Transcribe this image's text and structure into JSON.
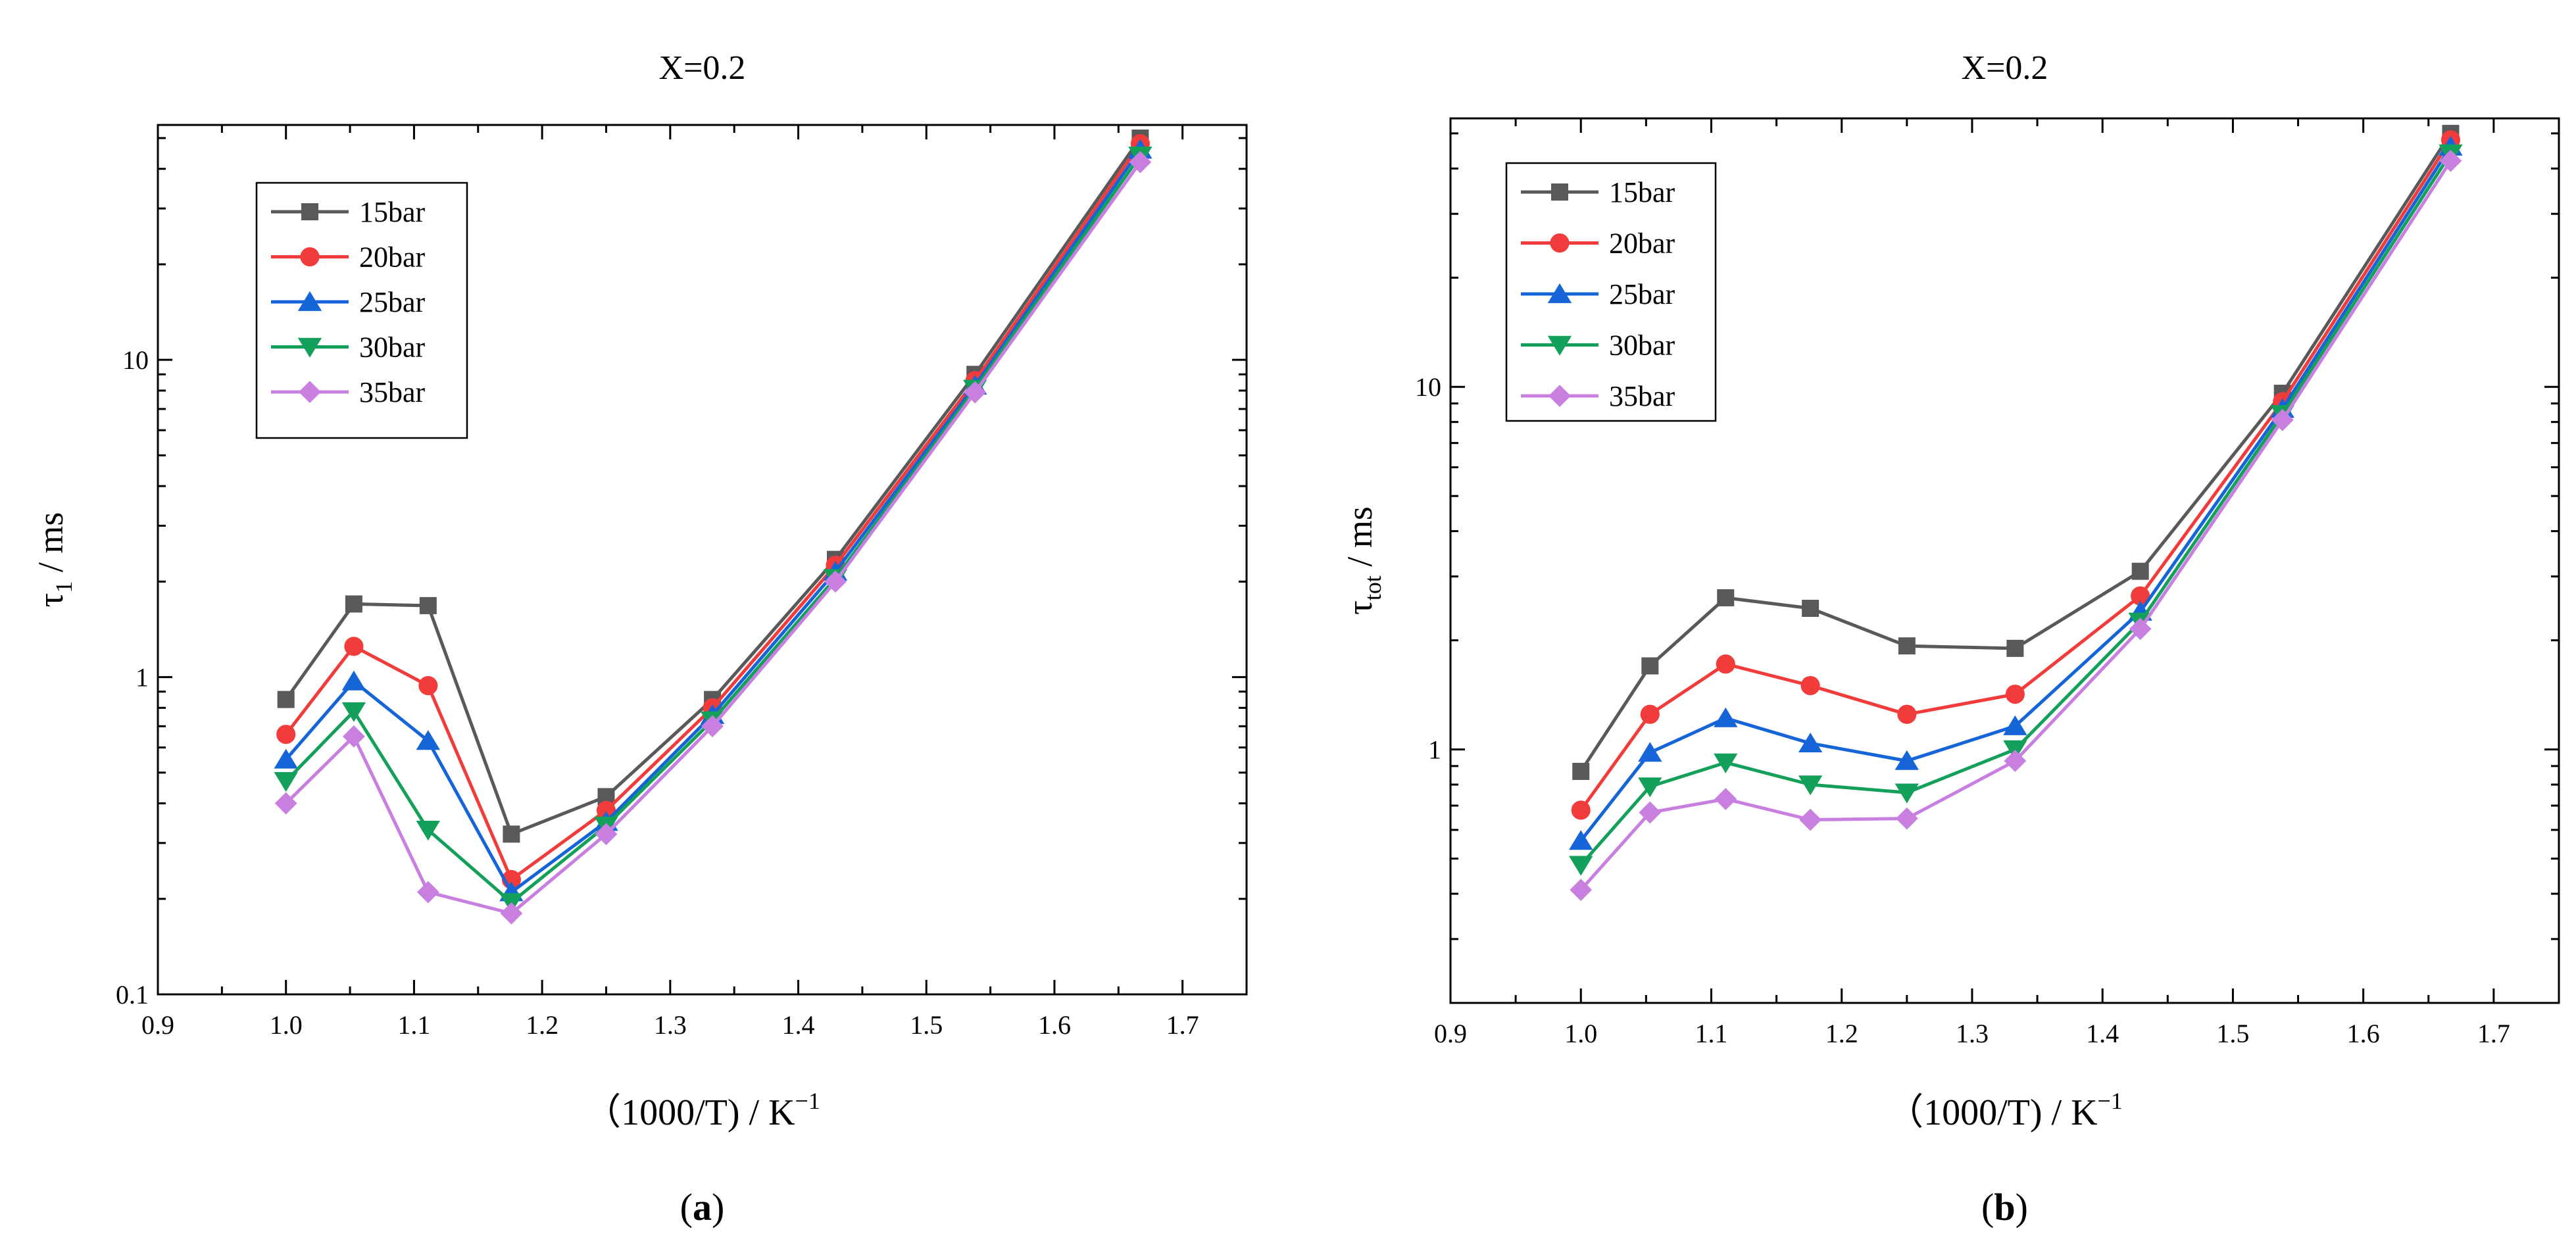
{
  "chart_data": [
    {
      "panel_label": "a",
      "type": "line",
      "title": "X=0.2",
      "xlabel_prefix": "（1000/T) / K",
      "xlabel_sup": "−1",
      "ylabel_main": "τ",
      "ylabel_sub": "1",
      "ylabel_suffix": " / ms",
      "yscale": "log",
      "xlim": [
        0.9,
        1.75
      ],
      "ylim": [
        0.1,
        55
      ],
      "xticks": [
        0.9,
        1.0,
        1.1,
        1.2,
        1.3,
        1.4,
        1.5,
        1.6,
        1.7
      ],
      "xtick_labels": [
        "0.9",
        "1.0",
        "1.1",
        "1.2",
        "1.3",
        "1.4",
        "1.5",
        "1.6",
        "1.7"
      ],
      "yticks": [
        0.1,
        1,
        10
      ],
      "ytick_labels": [
        "0.1",
        "1",
        "10"
      ],
      "x": [
        1.0,
        1.053,
        1.111,
        1.176,
        1.25,
        1.333,
        1.429,
        1.538,
        1.667
      ],
      "series": [
        {
          "name": "15bar",
          "color": "#595959",
          "marker": "square",
          "values": [
            0.85,
            1.7,
            1.68,
            0.32,
            0.42,
            0.85,
            2.35,
            9.0,
            50.0
          ]
        },
        {
          "name": "20bar",
          "color": "#f23b3b",
          "marker": "circle",
          "values": [
            0.66,
            1.25,
            0.94,
            0.23,
            0.38,
            0.8,
            2.25,
            8.6,
            48.0
          ]
        },
        {
          "name": "25bar",
          "color": "#1565d8",
          "marker": "triangle-up",
          "values": [
            0.55,
            0.97,
            0.63,
            0.21,
            0.35,
            0.76,
            2.15,
            8.3,
            46.0
          ]
        },
        {
          "name": "30bar",
          "color": "#12a05a",
          "marker": "triangle-down",
          "values": [
            0.47,
            0.78,
            0.33,
            0.195,
            0.34,
            0.73,
            2.05,
            8.1,
            44.0
          ]
        },
        {
          "name": "35bar",
          "color": "#c87fe0",
          "marker": "diamond",
          "values": [
            0.4,
            0.65,
            0.21,
            0.18,
            0.32,
            0.7,
            2.0,
            7.9,
            42.0
          ]
        }
      ]
    },
    {
      "panel_label": "b",
      "type": "line",
      "title": "X=0.2",
      "xlabel_prefix": "（1000/T) / K",
      "xlabel_sup": "−1",
      "ylabel_main": "τ",
      "ylabel_sub": "tot",
      "ylabel_suffix": " / ms",
      "yscale": "log",
      "xlim": [
        0.9,
        1.75
      ],
      "ylim": [
        0.2,
        55
      ],
      "xticks": [
        0.9,
        1.0,
        1.1,
        1.2,
        1.3,
        1.4,
        1.5,
        1.6,
        1.7
      ],
      "xtick_labels": [
        "0.9",
        "1.0",
        "1.1",
        "1.2",
        "1.3",
        "1.4",
        "1.5",
        "1.6",
        "1.7"
      ],
      "yticks": [
        1,
        10
      ],
      "ytick_labels": [
        "1",
        "10"
      ],
      "x": [
        1.0,
        1.053,
        1.111,
        1.176,
        1.25,
        1.333,
        1.429,
        1.538,
        1.667
      ],
      "series": [
        {
          "name": "15bar",
          "color": "#595959",
          "marker": "square",
          "values": [
            0.87,
            1.7,
            2.62,
            2.45,
            1.93,
            1.9,
            3.1,
            9.6,
            50.0
          ]
        },
        {
          "name": "20bar",
          "color": "#f23b3b",
          "marker": "circle",
          "values": [
            0.68,
            1.25,
            1.72,
            1.5,
            1.25,
            1.42,
            2.65,
            9.1,
            48.0
          ]
        },
        {
          "name": "25bar",
          "color": "#1565d8",
          "marker": "triangle-up",
          "values": [
            0.56,
            0.98,
            1.22,
            1.04,
            0.93,
            1.16,
            2.4,
            8.7,
            46.0
          ]
        },
        {
          "name": "30bar",
          "color": "#12a05a",
          "marker": "triangle-down",
          "values": [
            0.48,
            0.79,
            0.92,
            0.8,
            0.76,
            1.0,
            2.25,
            8.4,
            44.0
          ]
        },
        {
          "name": "35bar",
          "color": "#c87fe0",
          "marker": "diamond",
          "values": [
            0.41,
            0.67,
            0.73,
            0.64,
            0.645,
            0.93,
            2.15,
            8.1,
            42.0
          ]
        }
      ]
    }
  ]
}
